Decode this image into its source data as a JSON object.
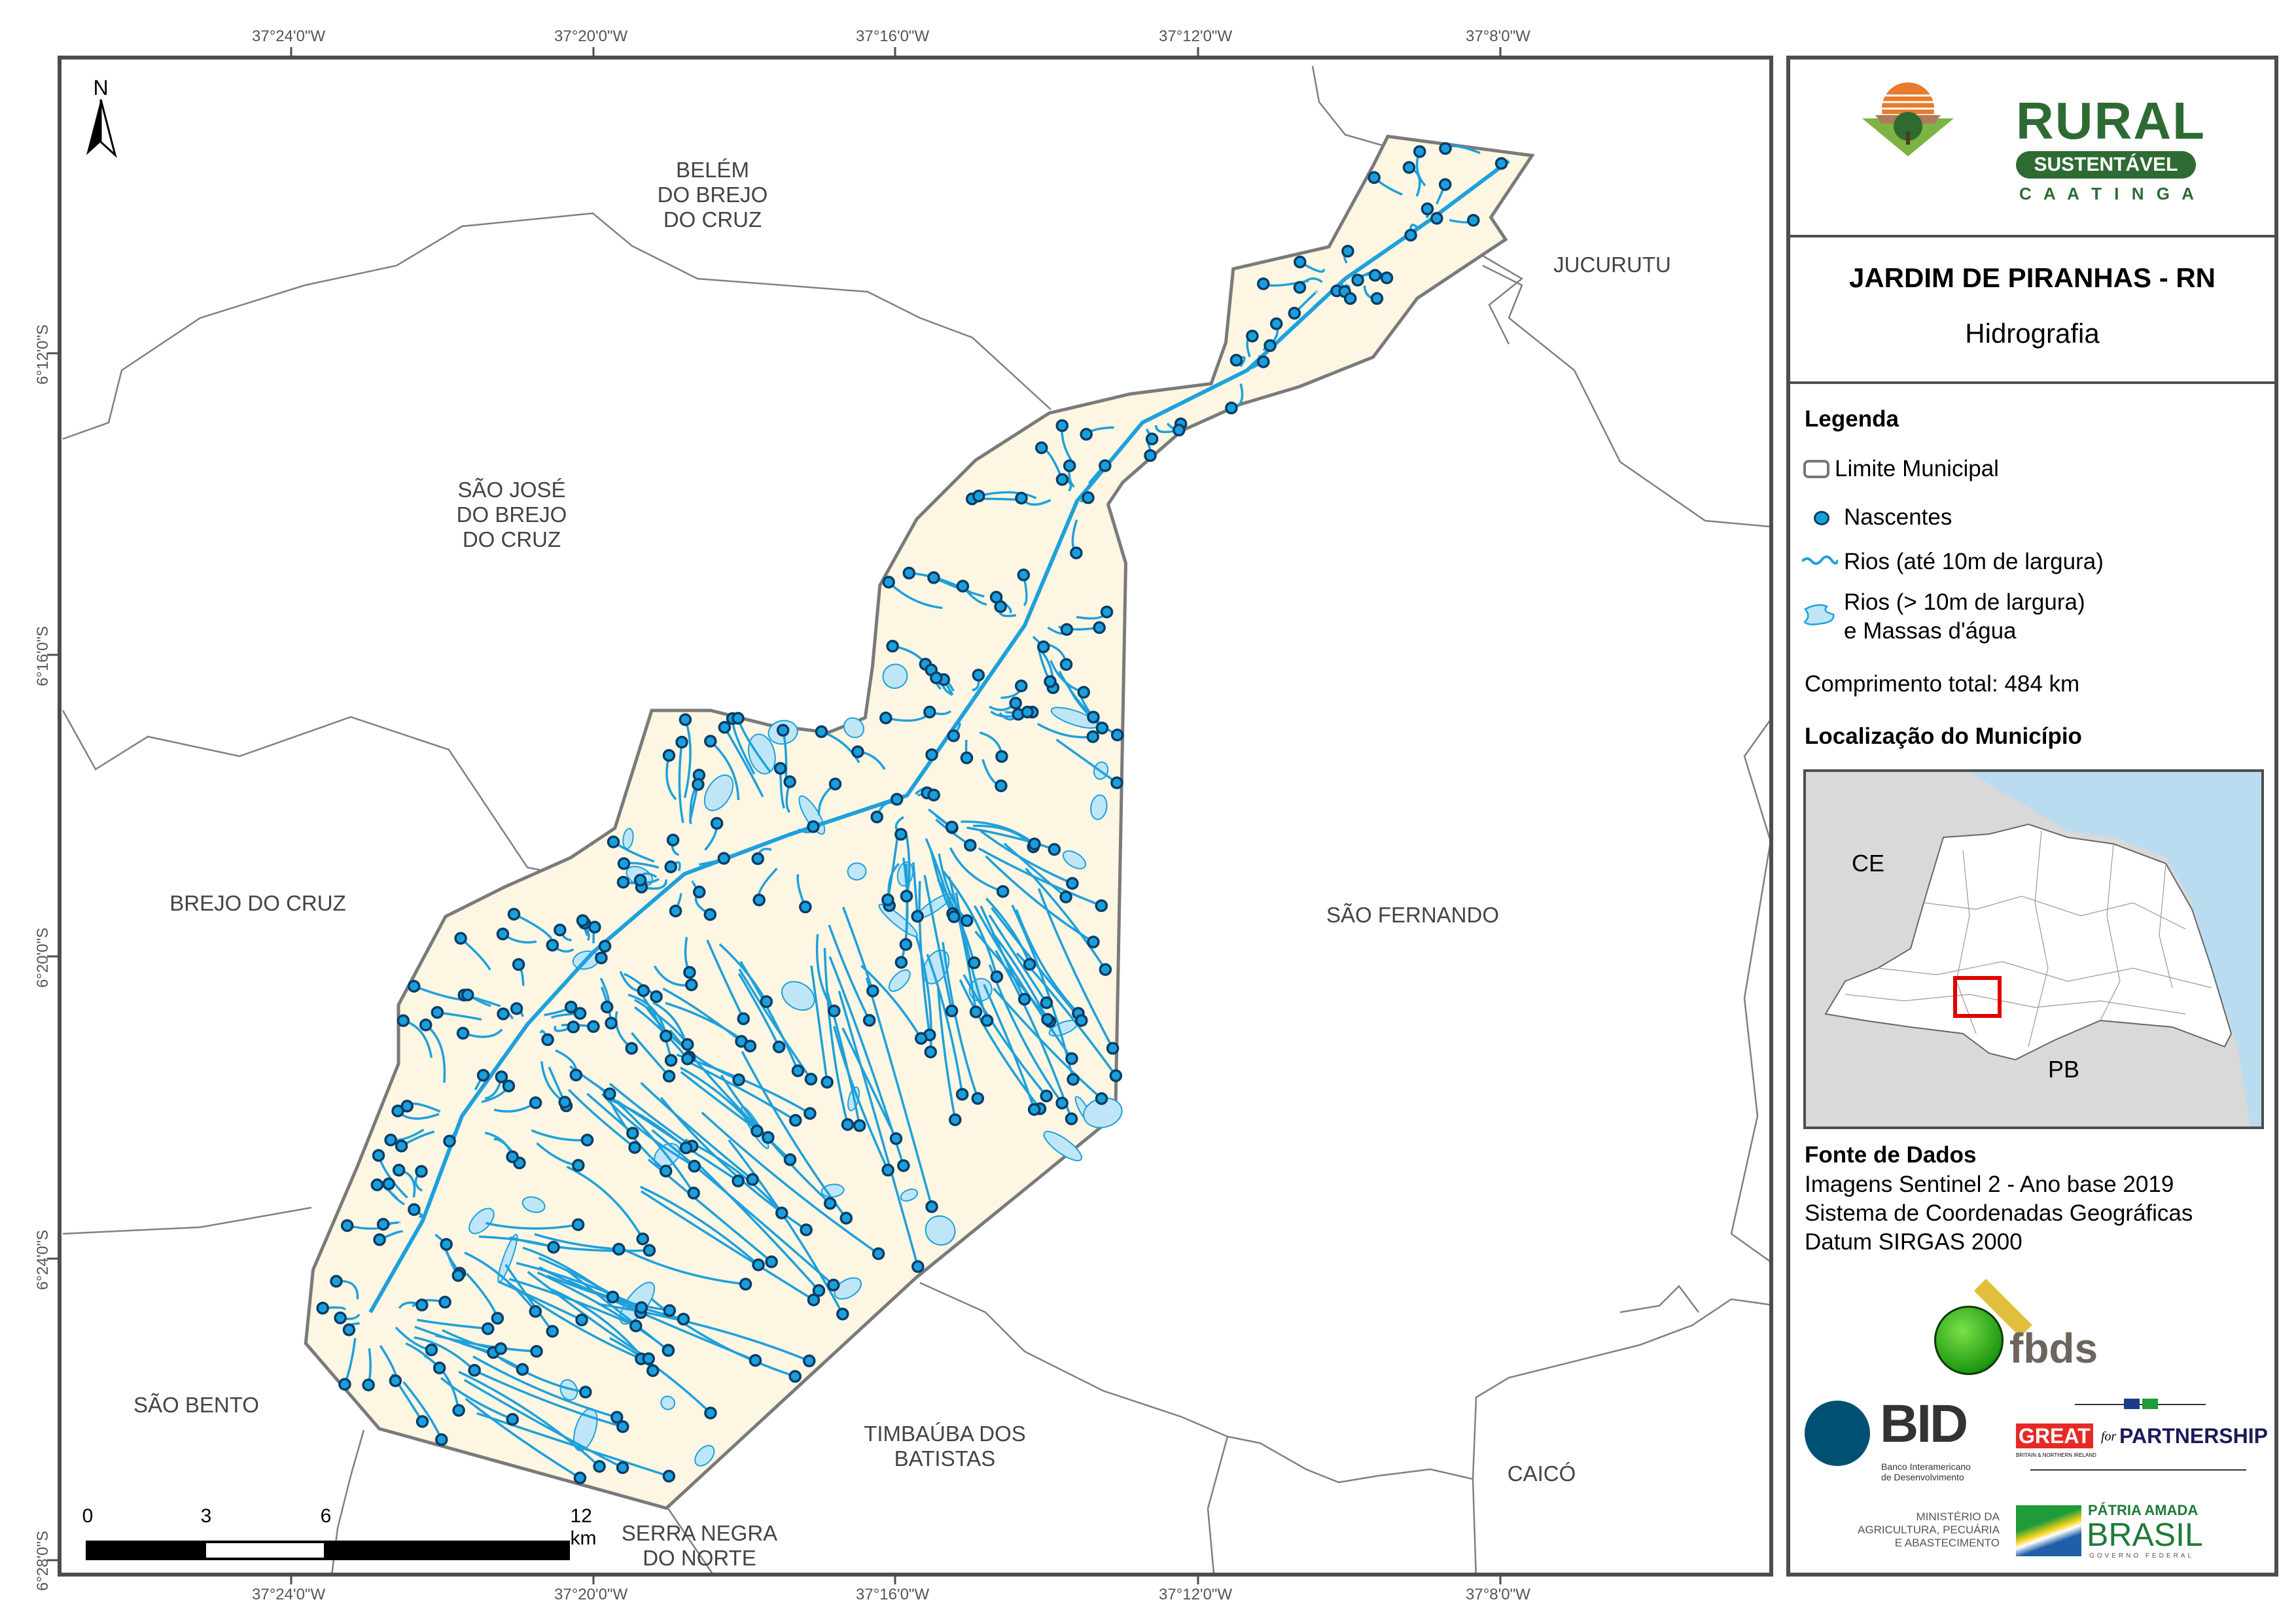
{
  "map": {
    "lon_ticks": [
      "37°24'0\"W",
      "37°20'0\"W",
      "37°16'0\"W",
      "37°12'0\"W",
      "37°8'0\"W"
    ],
    "lat_ticks": [
      "6°12'0\"S",
      "6°16'0\"S",
      "6°20'0\"S",
      "6°24'0\"S",
      "6°28'0\"S"
    ],
    "north_label": "N",
    "places": {
      "belem": "BELÉM\nDO BREJO\nDO CRUZ",
      "jucurutu": "JUCURUTU",
      "sao_jose": "SÃO JOSÉ\nDO BREJO\nDO CRUZ",
      "brejo": "BREJO DO CRUZ",
      "sao_fernando": "SÃO FERNANDO",
      "sao_bento": "SÃO BENTO",
      "timbauba": "TIMBAÚBA DOS\nBATISTAS",
      "caico": "CAICÓ",
      "serra_negra": "SERRA NEGRA\nDO NORTE"
    },
    "scale": {
      "labels": [
        "0",
        "3",
        "6",
        "12 km"
      ]
    },
    "colors": {
      "municipality_fill": "#fdf6e3",
      "river": "#1ea0dc",
      "water_body": "#bfe6f7",
      "spring": "#0a6fa8",
      "boundary": "#808080"
    }
  },
  "panel": {
    "logo": {
      "rural": "RURAL",
      "sustentavel": "SUSTENTÁVEL",
      "caatinga": "C A A T I N G A"
    },
    "title": "JARDIM DE PIRANHAS - RN",
    "subtitle": "Hidrografia",
    "legend": {
      "heading": "Legenda",
      "items": [
        "Limite Municipal",
        "Nascentes",
        "Rios (até 10m de largura)",
        "Rios (> 10m de largura)",
        "e Massas d'água"
      ],
      "total_length": "Comprimento total:  484 km"
    },
    "location": {
      "heading": "Localização do Município",
      "ce": "CE",
      "pb": "PB",
      "inset_colors": {
        "sea": "#b9dcf0",
        "land": "#d9d9d9",
        "state": "#ffffff",
        "highlight": "#e00000"
      }
    },
    "sources": {
      "heading": "Fonte de Dados",
      "lines": [
        "Imagens Sentinel 2 - Ano base 2019",
        "Sistema de Coordenadas Geográficas",
        "Datum SIRGAS 2000"
      ]
    },
    "logos": {
      "fbds": "fbds",
      "bid": "BID",
      "bid_sub": "Banco Interamericano\nde Desenvolvimento",
      "great": "GREAT",
      "for": "for",
      "partnership": "PARTNERSHIP",
      "great_sub": "BRITAIN & NORTHERN IRELAND",
      "ministerio": "MINISTÉRIO DA\nAGRICULTURA, PECUÁRIA\nE ABASTECIMENTO",
      "patria": "PÁTRIA AMADA",
      "brasil": "BRASIL",
      "governo": "GOVERNO FEDERAL"
    }
  }
}
